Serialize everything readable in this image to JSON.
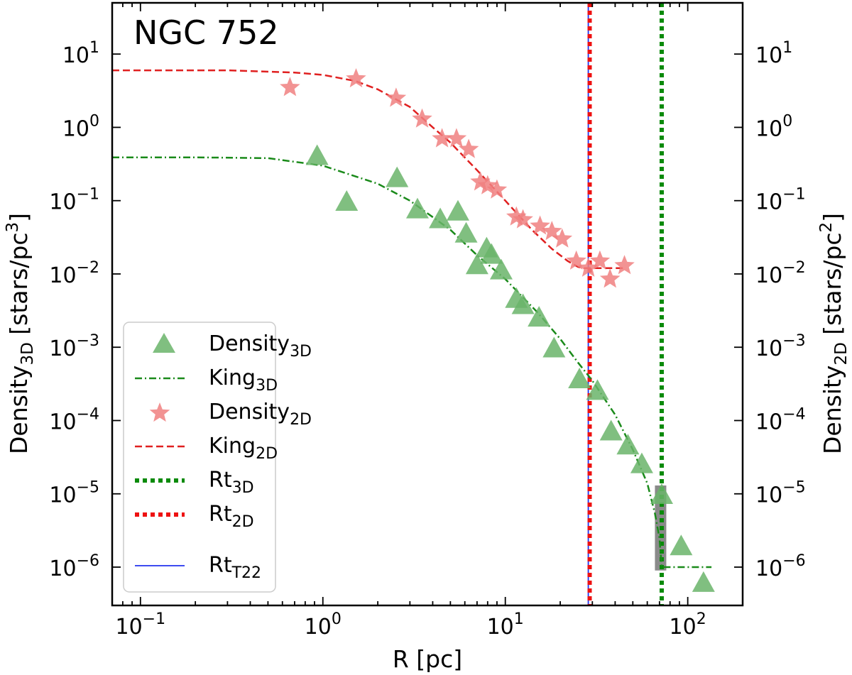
{
  "chart_data": {
    "type": "scatter",
    "title": "NGC 752",
    "xlabel": "R  [pc]",
    "ylabel_left": {
      "main": "Density",
      "sub": "3D",
      "unit": "  [stars/pc",
      "sup": "3",
      "close": "]"
    },
    "ylabel_right": {
      "main": "Density",
      "sub": "2D",
      "unit": "  [stars/pc",
      "sup": "2",
      "close": "]"
    },
    "x_scale": "log",
    "y_scale": "log",
    "xlim": [
      0.07,
      200
    ],
    "ylim": [
      3e-07,
      50
    ],
    "x_ticks": [
      {
        "value": 0.1,
        "base": "10",
        "exp": "−1"
      },
      {
        "value": 1,
        "base": "10",
        "exp": "0"
      },
      {
        "value": 10,
        "base": "10",
        "exp": "1"
      },
      {
        "value": 100,
        "base": "10",
        "exp": "2"
      }
    ],
    "y_ticks": [
      {
        "value": 10,
        "base": "10",
        "exp": "1"
      },
      {
        "value": 1,
        "base": "10",
        "exp": "0"
      },
      {
        "value": 0.1,
        "base": "10",
        "exp": "−1"
      },
      {
        "value": 0.01,
        "base": "10",
        "exp": "−2"
      },
      {
        "value": 0.001,
        "base": "10",
        "exp": "−3"
      },
      {
        "value": 0.0001,
        "base": "10",
        "exp": "−4"
      },
      {
        "value": 1e-05,
        "base": "10",
        "exp": "−5"
      },
      {
        "value": 1e-06,
        "base": "10",
        "exp": "−6"
      }
    ],
    "grid": false,
    "legend_position": "lower-left",
    "series": {
      "density3d": {
        "name": "Density",
        "sub": "3D",
        "marker": "triangle",
        "color": "#6ab46a",
        "x": [
          0.93,
          1.35,
          2.55,
          3.3,
          4.4,
          5.5,
          6.1,
          7.0,
          7.9,
          8.4,
          9.5,
          11.5,
          12.5,
          15.3,
          18.5,
          25.5,
          32.0,
          38.0,
          47.0,
          56.0,
          72.0,
          92.0,
          122.0
        ],
        "y": [
          0.4,
          0.095,
          0.2,
          0.075,
          0.055,
          0.07,
          0.035,
          0.013,
          0.022,
          0.018,
          0.011,
          0.0045,
          0.0037,
          0.0025,
          0.00095,
          0.00036,
          0.00025,
          7e-05,
          4.5e-05,
          2.5e-05,
          9.5e-06,
          1.9e-06,
          6e-07
        ]
      },
      "density2d": {
        "name": "Density",
        "sub": "2D",
        "marker": "star",
        "color": "#f08080",
        "x": [
          0.66,
          1.52,
          2.52,
          3.5,
          4.5,
          5.4,
          6.3,
          7.3,
          8.0,
          9.0,
          11.5,
          12.5,
          15.5,
          18.0,
          20.5,
          24.5,
          28.5,
          33.0,
          37.5,
          45.0
        ],
        "y": [
          3.5,
          4.6,
          2.5,
          1.3,
          0.7,
          0.7,
          0.5,
          0.18,
          0.16,
          0.14,
          0.06,
          0.055,
          0.045,
          0.038,
          0.03,
          0.015,
          0.012,
          0.015,
          0.0085,
          0.013
        ]
      },
      "king3d": {
        "name": "King",
        "sub": "3D",
        "style": "dashdot",
        "color": "#1a8a1a",
        "x": [
          0.07,
          0.2,
          0.5,
          1,
          2,
          3,
          5,
          7,
          10,
          15,
          20,
          25,
          30,
          40,
          50,
          60,
          66,
          70,
          72,
          100,
          135
        ],
        "y": [
          0.39,
          0.39,
          0.38,
          0.3,
          0.17,
          0.1,
          0.04,
          0.018,
          0.0085,
          0.003,
          0.0013,
          0.00062,
          0.00035,
          0.00012,
          4e-05,
          1.4e-05,
          5.5e-06,
          2.5e-06,
          1e-06,
          1e-06,
          1e-06
        ]
      },
      "king2d": {
        "name": "King",
        "sub": "2D",
        "style": "dashed",
        "color": "#e02020",
        "x": [
          0.07,
          0.3,
          0.7,
          1.0,
          1.5,
          2.0,
          3.0,
          4.0,
          5.0,
          7.0,
          10.0,
          14.0,
          18.0,
          22.0,
          25.0,
          27.0,
          28.5,
          46.0
        ],
        "y": [
          6.0,
          6.0,
          5.6,
          5.2,
          4.3,
          3.3,
          1.9,
          1.0,
          0.62,
          0.26,
          0.1,
          0.04,
          0.022,
          0.015,
          0.0125,
          0.012,
          0.012,
          0.012
        ]
      },
      "rt3d": {
        "name": "Rt",
        "sub": "3D",
        "style": "dotted",
        "color": "#0a8a0a",
        "x": 72
      },
      "rt2d": {
        "name": "Rt",
        "sub": "2D",
        "style": "dotted",
        "color": "#ee1111",
        "x": 29
      },
      "rtT22": {
        "name": "Rt",
        "sub": "T22",
        "style": "solid",
        "color": "#2233ee",
        "x": 28.5
      }
    },
    "error_band": {
      "x": 71,
      "y_low": 9e-07,
      "y_high": 1.3e-05,
      "color": "#8a8a8a"
    }
  }
}
